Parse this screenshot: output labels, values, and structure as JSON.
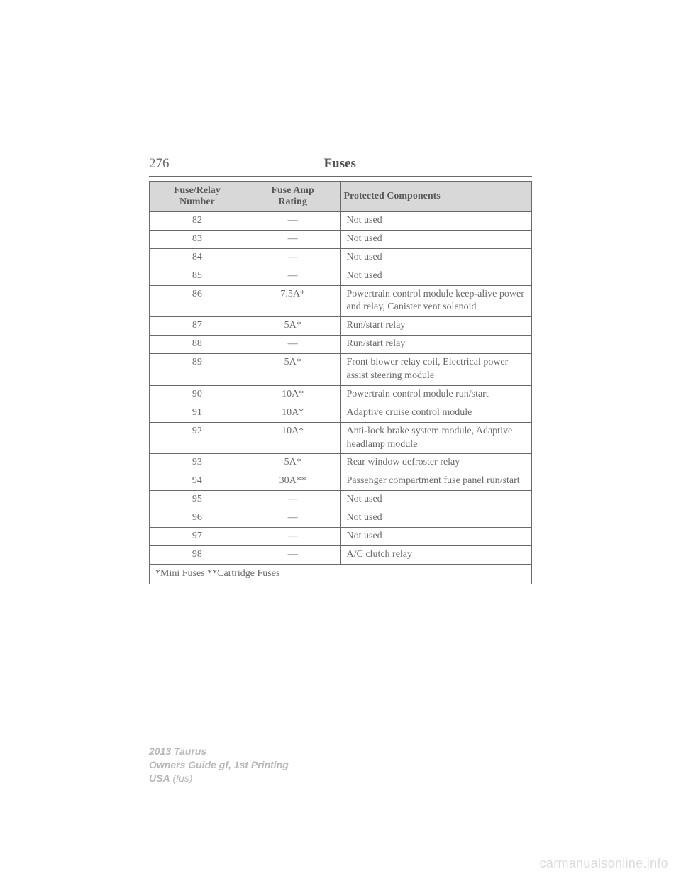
{
  "header": {
    "page_number": "276",
    "title": "Fuses"
  },
  "table": {
    "columns": [
      {
        "line1": "Fuse/Relay",
        "line2": "Number"
      },
      {
        "line1": "Fuse Amp",
        "line2": "Rating"
      },
      {
        "line1": "Protected Components",
        "line2": ""
      }
    ],
    "rows": [
      {
        "num": "82",
        "amp": "—",
        "comp": "Not used"
      },
      {
        "num": "83",
        "amp": "—",
        "comp": "Not used"
      },
      {
        "num": "84",
        "amp": "—",
        "comp": "Not used"
      },
      {
        "num": "85",
        "amp": "—",
        "comp": "Not used"
      },
      {
        "num": "86",
        "amp": "7.5A*",
        "comp": "Powertrain control module keep-alive power and relay, Canister vent solenoid"
      },
      {
        "num": "87",
        "amp": "5A*",
        "comp": "Run/start relay"
      },
      {
        "num": "88",
        "amp": "—",
        "comp": "Run/start relay"
      },
      {
        "num": "89",
        "amp": "5A*",
        "comp": "Front blower relay coil, Electrical power assist steering module"
      },
      {
        "num": "90",
        "amp": "10A*",
        "comp": "Powertrain control module run/start"
      },
      {
        "num": "91",
        "amp": "10A*",
        "comp": "Adaptive cruise control module"
      },
      {
        "num": "92",
        "amp": "10A*",
        "comp": "Anti-lock brake system module, Adaptive headlamp module"
      },
      {
        "num": "93",
        "amp": "5A*",
        "comp": "Rear window defroster relay"
      },
      {
        "num": "94",
        "amp": "30A**",
        "comp": "Passenger compartment fuse panel run/start"
      },
      {
        "num": "95",
        "amp": "—",
        "comp": "Not used"
      },
      {
        "num": "96",
        "amp": "—",
        "comp": "Not used"
      },
      {
        "num": "97",
        "amp": "—",
        "comp": "Not used"
      },
      {
        "num": "98",
        "amp": "—",
        "comp": "A/C clutch relay"
      }
    ],
    "footnote": "*Mini Fuses **Cartridge Fuses"
  },
  "footer": {
    "line1": "2013 Taurus",
    "line2": "Owners Guide gf, 1st Printing",
    "line3a": "USA",
    "line3b": " (fus)"
  },
  "watermark": "carmanualsonline.info",
  "style": {
    "page_bg": "#ffffff",
    "text_color": "#6a6a6a",
    "header_bg": "#d8d8d8",
    "border_color": "#6a6a6a",
    "footer_color": "#b8b8b8",
    "watermark_color": "#dcdcdc",
    "body_fontsize": 14,
    "title_fontsize": 19
  }
}
